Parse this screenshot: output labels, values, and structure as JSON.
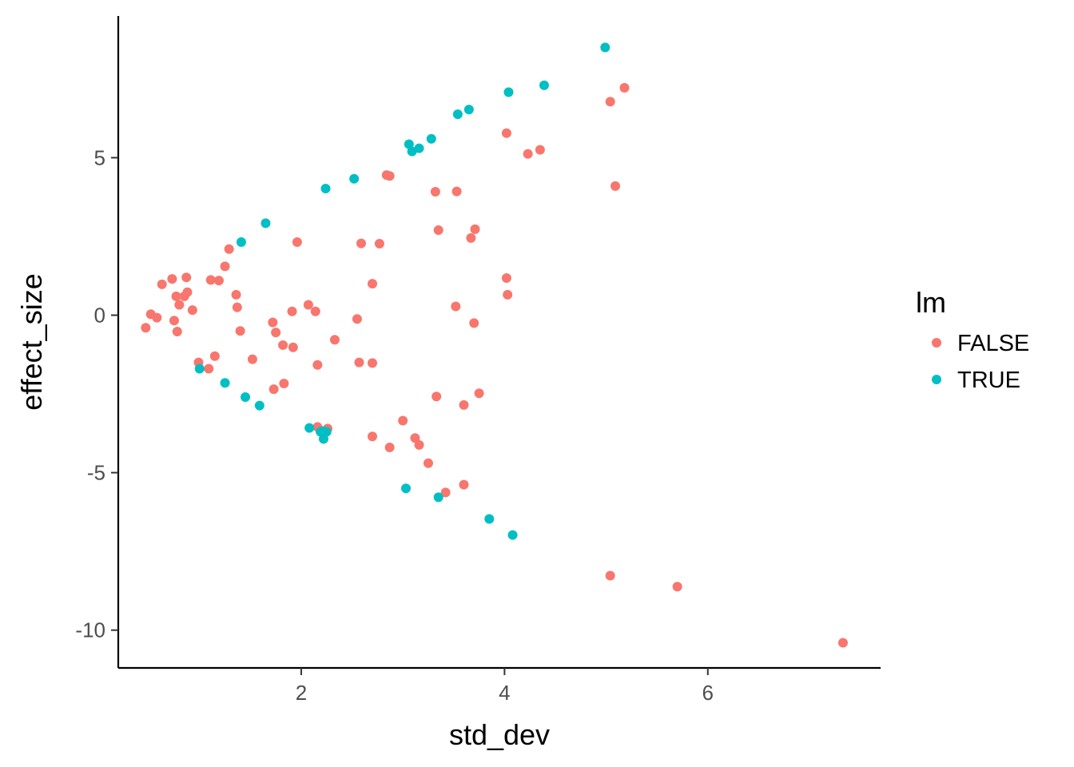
{
  "chart_data": {
    "type": "scatter",
    "title": "",
    "xlabel": "std_dev",
    "ylabel": "effect_size",
    "xlim": [
      0.2,
      7.7
    ],
    "ylim": [
      -11.2,
      9.5
    ],
    "xticks": [
      2,
      4,
      6
    ],
    "yticks": [
      5,
      0,
      -5,
      -10
    ],
    "xtick_labels": [
      "2",
      "4",
      "6"
    ],
    "ytick_labels": [
      "5",
      "0",
      "-5",
      "-10"
    ],
    "grid": false,
    "legend": {
      "title": "lm",
      "position": "right"
    },
    "series": [
      {
        "name": "FALSE",
        "color": "#F8766D",
        "points": [
          [
            0.47,
            -0.4
          ],
          [
            0.52,
            0.03
          ],
          [
            0.58,
            -0.08
          ],
          [
            0.63,
            0.98
          ],
          [
            0.73,
            1.15
          ],
          [
            0.75,
            -0.17
          ],
          [
            0.77,
            0.6
          ],
          [
            0.78,
            -0.52
          ],
          [
            0.8,
            0.33
          ],
          [
            0.85,
            0.6
          ],
          [
            0.87,
            1.2
          ],
          [
            0.88,
            0.73
          ],
          [
            0.93,
            0.16
          ],
          [
            0.99,
            -1.5
          ],
          [
            1.09,
            -1.7
          ],
          [
            1.11,
            1.12
          ],
          [
            1.15,
            -1.3
          ],
          [
            1.19,
            1.1
          ],
          [
            1.25,
            1.55
          ],
          [
            1.29,
            2.1
          ],
          [
            1.36,
            0.65
          ],
          [
            1.37,
            0.25
          ],
          [
            1.4,
            -0.5
          ],
          [
            1.52,
            -1.4
          ],
          [
            1.72,
            -0.23
          ],
          [
            1.73,
            -2.35
          ],
          [
            1.75,
            -0.55
          ],
          [
            1.82,
            -0.95
          ],
          [
            1.83,
            -2.17
          ],
          [
            1.91,
            0.12
          ],
          [
            1.92,
            -1.02
          ],
          [
            1.96,
            2.32
          ],
          [
            2.07,
            0.33
          ],
          [
            2.14,
            0.12
          ],
          [
            2.16,
            -1.58
          ],
          [
            2.16,
            -3.55
          ],
          [
            2.26,
            -3.6
          ],
          [
            2.33,
            -0.78
          ],
          [
            2.55,
            -0.12
          ],
          [
            2.57,
            -1.5
          ],
          [
            2.59,
            2.28
          ],
          [
            2.7,
            1.0
          ],
          [
            2.7,
            -1.52
          ],
          [
            2.7,
            -3.85
          ],
          [
            2.77,
            2.27
          ],
          [
            2.84,
            4.45
          ],
          [
            2.87,
            4.42
          ],
          [
            2.87,
            -4.2
          ],
          [
            3.0,
            -3.35
          ],
          [
            3.12,
            -3.9
          ],
          [
            3.16,
            -4.12
          ],
          [
            3.25,
            -4.7
          ],
          [
            3.32,
            3.92
          ],
          [
            3.33,
            -2.58
          ],
          [
            3.35,
            2.7
          ],
          [
            3.42,
            -5.63
          ],
          [
            3.52,
            0.28
          ],
          [
            3.53,
            3.93
          ],
          [
            3.6,
            -2.85
          ],
          [
            3.6,
            -5.38
          ],
          [
            3.67,
            2.45
          ],
          [
            3.7,
            -0.25
          ],
          [
            3.71,
            2.73
          ],
          [
            3.75,
            -2.48
          ],
          [
            4.02,
            5.78
          ],
          [
            4.02,
            1.18
          ],
          [
            4.03,
            0.65
          ],
          [
            4.23,
            5.12
          ],
          [
            4.35,
            5.25
          ],
          [
            5.04,
            6.78
          ],
          [
            5.04,
            -8.27
          ],
          [
            5.09,
            4.1
          ],
          [
            5.18,
            7.22
          ],
          [
            5.7,
            -8.62
          ],
          [
            7.33,
            -10.4
          ]
        ]
      },
      {
        "name": "TRUE",
        "color": "#00BFC4",
        "points": [
          [
            1.0,
            -1.7
          ],
          [
            1.25,
            -2.15
          ],
          [
            1.41,
            2.32
          ],
          [
            1.45,
            -2.6
          ],
          [
            1.59,
            -2.87
          ],
          [
            1.65,
            2.92
          ],
          [
            2.08,
            -3.58
          ],
          [
            2.19,
            -3.7
          ],
          [
            2.21,
            -3.68
          ],
          [
            2.22,
            -3.93
          ],
          [
            2.24,
            4.02
          ],
          [
            2.25,
            -3.7
          ],
          [
            2.52,
            4.33
          ],
          [
            3.03,
            -5.5
          ],
          [
            3.06,
            5.43
          ],
          [
            3.09,
            5.2
          ],
          [
            3.16,
            5.3
          ],
          [
            3.28,
            5.6
          ],
          [
            3.35,
            -5.78
          ],
          [
            3.54,
            6.38
          ],
          [
            3.65,
            6.53
          ],
          [
            3.85,
            -6.47
          ],
          [
            4.04,
            7.08
          ],
          [
            4.08,
            -6.98
          ],
          [
            4.39,
            7.3
          ],
          [
            4.99,
            8.5
          ]
        ]
      }
    ]
  }
}
